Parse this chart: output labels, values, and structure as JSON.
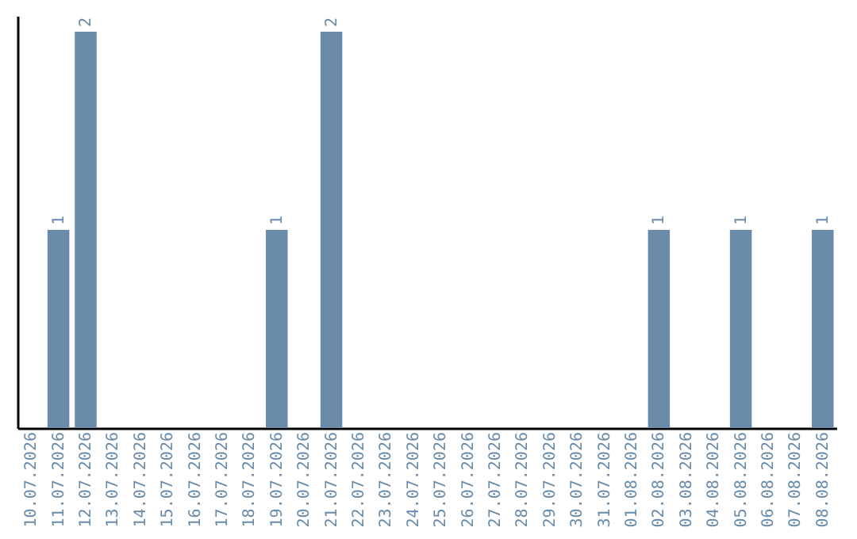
{
  "chart_data": {
    "type": "bar",
    "categories": [
      "10.07.2026",
      "11.07.2026",
      "12.07.2026",
      "13.07.2026",
      "14.07.2026",
      "15.07.2026",
      "16.07.2026",
      "17.07.2026",
      "18.07.2026",
      "19.07.2026",
      "20.07.2026",
      "21.07.2026",
      "22.07.2026",
      "23.07.2026",
      "24.07.2026",
      "25.07.2026",
      "26.07.2026",
      "27.07.2026",
      "28.07.2026",
      "29.07.2026",
      "30.07.2026",
      "31.07.2026",
      "01.08.2026",
      "02.08.2026",
      "03.08.2026",
      "04.08.2026",
      "05.08.2026",
      "06.08.2026",
      "07.08.2026",
      "08.08.2026"
    ],
    "values": [
      0,
      1,
      2,
      0,
      0,
      0,
      0,
      0,
      0,
      1,
      0,
      2,
      0,
      0,
      0,
      0,
      0,
      0,
      0,
      0,
      0,
      0,
      0,
      1,
      0,
      0,
      1,
      0,
      0,
      1
    ],
    "value_labels": [
      null,
      "1",
      "2",
      null,
      null,
      null,
      null,
      null,
      null,
      "1",
      null,
      "2",
      null,
      null,
      null,
      null,
      null,
      null,
      null,
      null,
      null,
      null,
      null,
      "1",
      null,
      null,
      "1",
      null,
      null,
      "1"
    ],
    "color": "#6a8caa",
    "ylim": [
      0,
      2.08
    ],
    "tick_labels": "x"
  }
}
